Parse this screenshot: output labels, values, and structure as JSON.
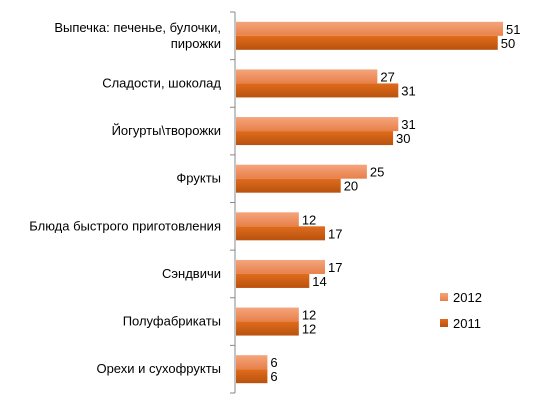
{
  "chart_data": {
    "type": "bar",
    "orientation": "horizontal",
    "categories": [
      [
        "Выпечка: печенье, булочки,",
        "пирожки"
      ],
      [
        "Сладости, шоколад"
      ],
      [
        "Йогурты\\творожки"
      ],
      [
        "Фрукты"
      ],
      [
        "Блюда быстрого приготовления"
      ],
      [
        "Сэндвичи"
      ],
      [
        "Полуфабрикаты"
      ],
      [
        "Орехи и сухофрукты"
      ]
    ],
    "series": [
      {
        "name": "2012",
        "values": [
          51,
          27,
          31,
          25,
          12,
          17,
          12,
          6
        ],
        "color": "#F4A57C",
        "gradient_to": "#E8804A"
      },
      {
        "name": "2011",
        "values": [
          50,
          31,
          30,
          20,
          17,
          14,
          12,
          6
        ],
        "color": "#E06C1C",
        "gradient_to": "#B8520E"
      }
    ],
    "xlim": [
      0,
      51
    ],
    "grid": false,
    "data_labels": true,
    "legend_position": "bottom-right",
    "title": "",
    "xlabel": "",
    "ylabel": ""
  }
}
